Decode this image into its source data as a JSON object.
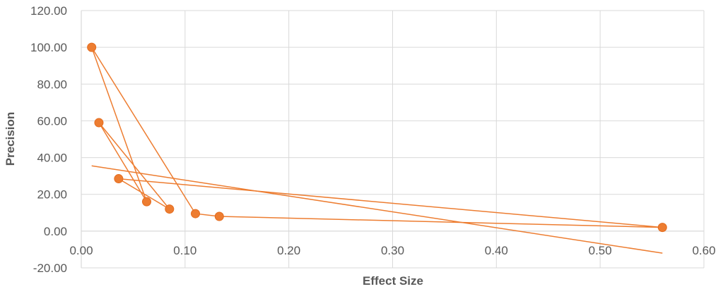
{
  "chart_data": {
    "type": "scatter",
    "title": "",
    "xlabel": "Effect Size",
    "ylabel": "Precision",
    "xlim": [
      0,
      0.6
    ],
    "ylim": [
      -20,
      120
    ],
    "x_ticks": [
      0.0,
      0.1,
      0.2,
      0.3,
      0.4,
      0.5,
      0.6
    ],
    "x_tick_labels": [
      "0.00",
      "0.10",
      "0.20",
      "0.30",
      "0.40",
      "0.50",
      "0.60"
    ],
    "y_ticks": [
      -20,
      0,
      20,
      40,
      60,
      80,
      100,
      120
    ],
    "y_tick_labels": [
      "-20.00",
      "0.00",
      "20.00",
      "40.00",
      "60.00",
      "80.00",
      "100.00",
      "120.00"
    ],
    "grid": true,
    "legend": "none",
    "series": [
      {
        "points": [
          {
            "x": 0.01,
            "y": 100.0
          },
          {
            "x": 0.063,
            "y": 16.0
          },
          {
            "x": 0.017,
            "y": 59.0
          },
          {
            "x": 0.085,
            "y": 12.0
          },
          {
            "x": 0.036,
            "y": 28.5
          },
          {
            "x": 0.56,
            "y": 2.0
          },
          {
            "x": 0.133,
            "y": 8.0
          },
          {
            "x": 0.11,
            "y": 9.5
          },
          {
            "x": 0.01,
            "y": 100.0
          }
        ],
        "color": "#ED7D31"
      },
      {
        "points": [
          {
            "x": 0.01,
            "y": 35.5
          },
          {
            "x": 0.56,
            "y": -12.0
          }
        ],
        "color": "#ED7D31",
        "markers": false
      }
    ],
    "colors": {
      "grid": "#D9D9D9",
      "text": "#595959",
      "series": "#ED7D31"
    }
  }
}
